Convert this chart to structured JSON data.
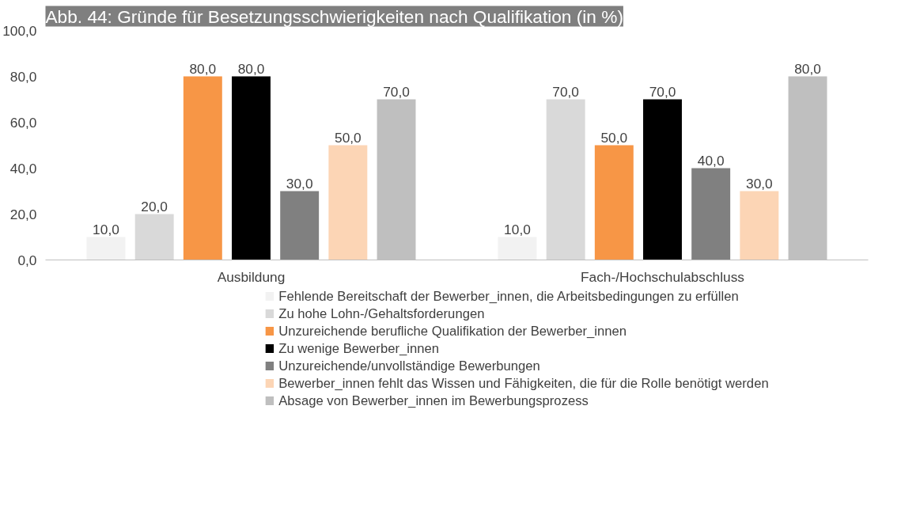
{
  "chart_data": {
    "type": "bar",
    "title": "Abb. 44: Gründe für Besetzungsschwierigkeiten nach Qualifikation (in %)",
    "categories": [
      "Ausbildung",
      "Fach-/Hochschulabschluss"
    ],
    "series": [
      {
        "name": "Fehlende Bereitschaft der Bewerber_innen, die Arbeitsbedingungen zu erfüllen",
        "color": "#f2f2f2",
        "values": [
          10,
          10
        ],
        "value_labels": [
          "10,0",
          "10,0"
        ]
      },
      {
        "name": "Zu hohe Lohn-/Gehaltsforderungen",
        "color": "#d9d9d9",
        "values": [
          20,
          70
        ],
        "value_labels": [
          "20,0",
          "70,0"
        ]
      },
      {
        "name": "Unzureichende berufliche Qualifikation der Bewerber_innen",
        "color": "#f79646",
        "values": [
          80,
          50
        ],
        "value_labels": [
          "80,0",
          "50,0"
        ]
      },
      {
        "name": "Zu wenige Bewerber_innen",
        "color": "#000000",
        "values": [
          80,
          70
        ],
        "value_labels": [
          "80,0",
          "70,0"
        ]
      },
      {
        "name": "Unzureichende/unvollständige Bewerbungen",
        "color": "#808080",
        "values": [
          30,
          40
        ],
        "value_labels": [
          "30,0",
          "40,0"
        ]
      },
      {
        "name": "Bewerber_innen fehlt das Wissen und Fähigkeiten, die für die Rolle benötigt werden",
        "color": "#fcd5b5",
        "values": [
          50,
          30
        ],
        "value_labels": [
          "50,0",
          "30,0"
        ]
      },
      {
        "name": "Absage von Bewerber_innen im Bewerbungsprozess",
        "color": "#bfbfbf",
        "values": [
          70,
          80
        ],
        "value_labels": [
          "70,0",
          "80,0"
        ]
      }
    ],
    "ylim": [
      0,
      100
    ],
    "yticks": [
      {
        "value": 0,
        "label": "0,0"
      },
      {
        "value": 20,
        "label": "20,0"
      },
      {
        "value": 40,
        "label": "40,0"
      },
      {
        "value": 60,
        "label": "60,0"
      },
      {
        "value": 80,
        "label": "80,0"
      },
      {
        "value": 100,
        "label": "100,0"
      }
    ],
    "grid": false,
    "legend": "bottom"
  }
}
